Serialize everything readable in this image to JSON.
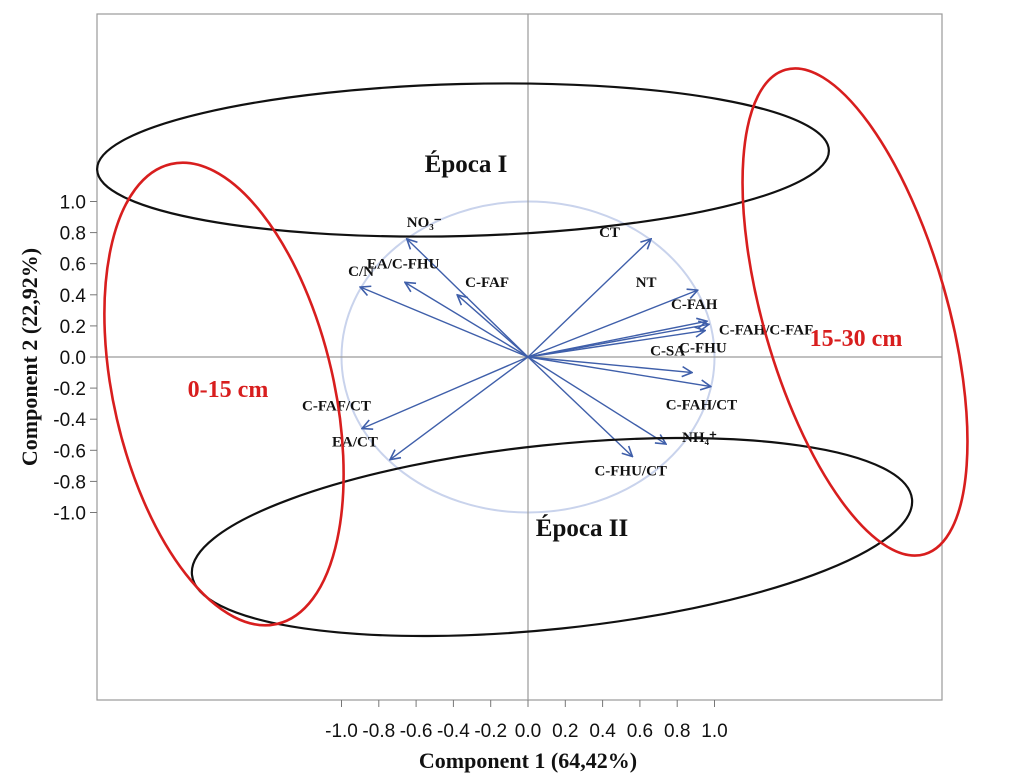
{
  "chart_data": {
    "type": "scatter",
    "subtype": "pca-loading-biplot",
    "title": "",
    "xlabel": "Component 1 (64,42%)",
    "ylabel": "Component 2 (22,92%)",
    "xlim": [
      -1.1,
      1.1
    ],
    "ylim": [
      -1.1,
      1.1
    ],
    "xticks": [
      -1.0,
      -0.8,
      -0.6,
      -0.4,
      -0.2,
      0.0,
      0.2,
      0.4,
      0.6,
      0.8,
      1.0
    ],
    "yticks": [
      1.0,
      0.8,
      0.6,
      0.4,
      0.2,
      0.0,
      -0.2,
      -0.4,
      -0.6,
      -0.8,
      -1.0
    ],
    "tick_labels_x": [
      "-1.0",
      "-0.8",
      "-0.6",
      "-0.4",
      "-0.2",
      "0.0",
      "0.2",
      "0.4",
      "0.6",
      "0.8",
      "1.0"
    ],
    "tick_labels_y": [
      "1.0",
      "0.8",
      "0.6",
      "0.4",
      "0.2",
      "0.0",
      "-0.2",
      "-0.4",
      "-0.6",
      "-0.8",
      "-1.0"
    ],
    "grid": false,
    "unit_circle": true,
    "arrow_color": "#3f5faa",
    "circle_color": "#c9d3ec",
    "vectors": [
      {
        "label": "NO₃⁻",
        "x": -0.65,
        "y": 0.76
      },
      {
        "label": "C/N",
        "x": -0.9,
        "y": 0.45
      },
      {
        "label": "EA/C-FHU",
        "x": -0.66,
        "y": 0.48
      },
      {
        "label": "C-FAF",
        "x": -0.38,
        "y": 0.4
      },
      {
        "label": "CT",
        "x": 0.66,
        "y": 0.76
      },
      {
        "label": "NT",
        "x": 0.91,
        "y": 0.43
      },
      {
        "label": "C-FAH",
        "x": 0.96,
        "y": 0.23
      },
      {
        "label": "C-FAH/C-FAF",
        "x": 0.97,
        "y": 0.21
      },
      {
        "label": "C-FHU",
        "x": 0.95,
        "y": 0.17
      },
      {
        "label": "C-SA",
        "x": 0.88,
        "y": -0.1
      },
      {
        "label": "C-FAH/CT",
        "x": 0.98,
        "y": -0.19
      },
      {
        "label": "NH₄⁺",
        "x": 0.74,
        "y": -0.56
      },
      {
        "label": "C-FHU/CT",
        "x": 0.56,
        "y": -0.64
      },
      {
        "label": "C-FAF/CT",
        "x": -0.89,
        "y": -0.46
      },
      {
        "label": "EA/CT",
        "x": -0.74,
        "y": -0.66
      }
    ],
    "annotations": [
      {
        "text": "Época I",
        "color": "#000000"
      },
      {
        "text": "Época II",
        "color": "#000000"
      },
      {
        "text": "0-15 cm",
        "color": "#d81e1e"
      },
      {
        "text": "15-30 cm",
        "color": "#d81e1e"
      }
    ]
  }
}
